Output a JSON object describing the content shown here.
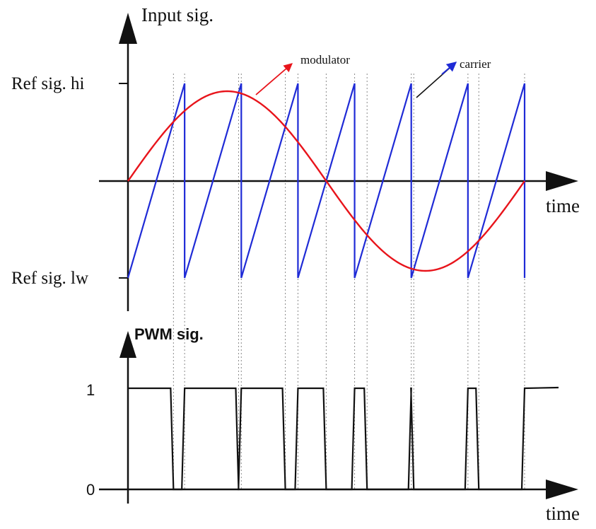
{
  "labels": {
    "input_axis": "Input sig.",
    "ref_hi": "Ref sig. hi",
    "ref_lw": "Ref sig. lw",
    "time_top": "time",
    "modulator": "modulator",
    "carrier": "carrier",
    "pwm_axis": "PWM sig.",
    "pwm_one": "1",
    "pwm_zero": "0",
    "time_bottom": "time"
  },
  "colors": {
    "axis": "#111111",
    "modulator": "#e8141b",
    "carrier": "#1f2bd6",
    "guide": "#888888",
    "pwm": "#111111"
  }
}
